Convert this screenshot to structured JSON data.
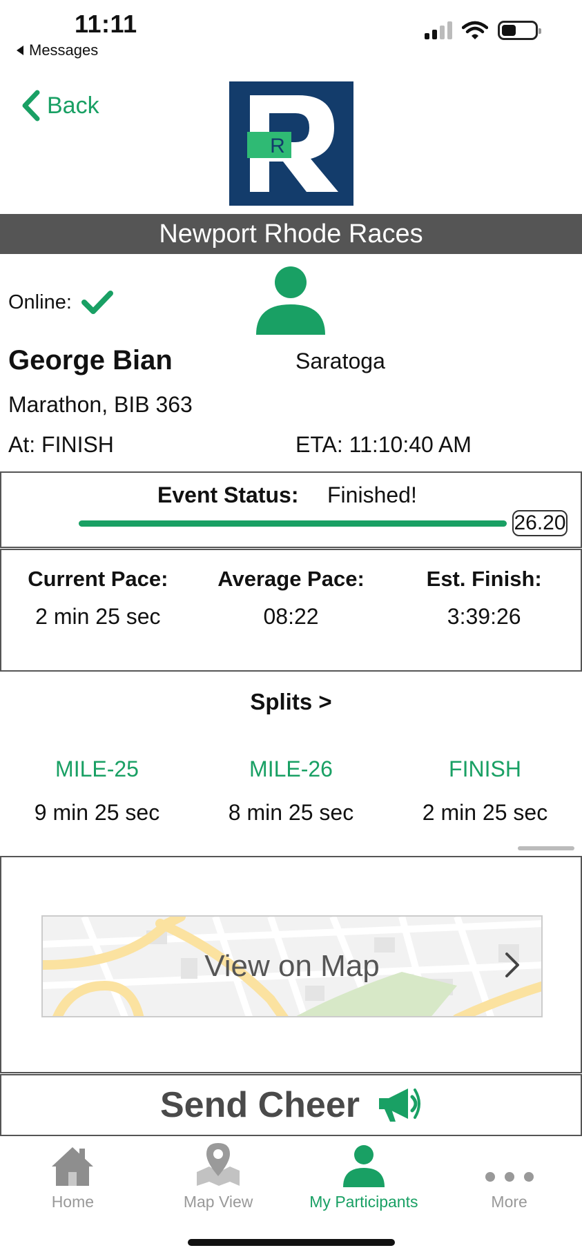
{
  "status_bar": {
    "time": "11:11",
    "back_app": "Messages"
  },
  "header": {
    "back_label": "Back",
    "logo_letter": "R",
    "title": "Newport Rhode Races"
  },
  "participant": {
    "online_label": "Online:",
    "name": "George Bian",
    "city": "Saratoga",
    "race_bib": "Marathon, BIB 363",
    "at": "At: FINISH",
    "eta": "ETA: 11:10:40 AM"
  },
  "event_status": {
    "label": "Event Status:",
    "value": "Finished!",
    "progress_fraction": 1.0,
    "distance": "26.20"
  },
  "pace": [
    {
      "label": "Current Pace:",
      "value": "2 min 25 sec"
    },
    {
      "label": "Average Pace:",
      "value": "08:22"
    },
    {
      "label": "Est. Finish:",
      "value": "3:39:26"
    }
  ],
  "splits": {
    "title": "Splits >",
    "items": [
      {
        "label": "MILE-25",
        "value": "9 min 25 sec"
      },
      {
        "label": "MILE-26",
        "value": "8 min 25 sec"
      },
      {
        "label": "FINISH",
        "value": "2 min 25 sec"
      }
    ]
  },
  "map": {
    "label": "View on Map"
  },
  "cheer": {
    "label": "Send Cheer"
  },
  "tabs": [
    {
      "label": "Home",
      "icon": "home-icon"
    },
    {
      "label": "Map View",
      "icon": "map-pin-icon"
    },
    {
      "label": "My Participants",
      "icon": "person-icon",
      "active": true
    },
    {
      "label": "More",
      "icon": "more-icon"
    }
  ],
  "colors": {
    "accent": "#19a064",
    "logo_blue": "#133c6b",
    "title_bar": "#555555"
  }
}
